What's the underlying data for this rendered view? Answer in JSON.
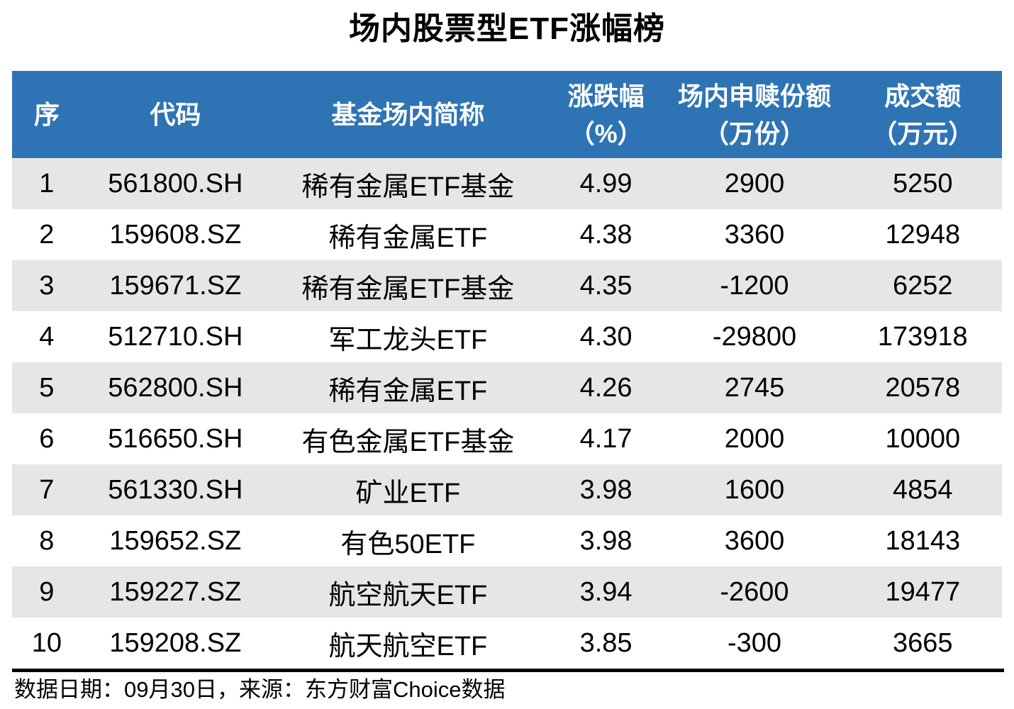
{
  "colors": {
    "header_bg": "#2E74B5",
    "header_text": "#FFFFFF",
    "row_stripe_bg": "#E7E6E6",
    "row_plain_bg": "#FFFFFF",
    "body_text": "#000000",
    "divider": "#000000"
  },
  "chart_data": {
    "type": "table",
    "title": "场内股票型ETF涨幅榜",
    "columns": [
      {
        "key": "no",
        "label": "序",
        "unit": ""
      },
      {
        "key": "code",
        "label": "代码",
        "unit": ""
      },
      {
        "key": "name",
        "label": "基金场内简称",
        "unit": ""
      },
      {
        "key": "change_pct",
        "label": "涨跌幅",
        "unit": "（%）"
      },
      {
        "key": "shares_10k",
        "label": "场内申赎份额",
        "unit": "（万份）"
      },
      {
        "key": "turnover_10k",
        "label": "成交额",
        "unit": "（万元）"
      }
    ],
    "rows": [
      {
        "no": "1",
        "code": "561800.SH",
        "name": "稀有金属ETF基金",
        "change_pct": "4.99",
        "shares_10k": "2900",
        "turnover_10k": "5250"
      },
      {
        "no": "2",
        "code": "159608.SZ",
        "name": "稀有金属ETF",
        "change_pct": "4.38",
        "shares_10k": "3360",
        "turnover_10k": "12948"
      },
      {
        "no": "3",
        "code": "159671.SZ",
        "name": "稀有金属ETF基金",
        "change_pct": "4.35",
        "shares_10k": "-1200",
        "turnover_10k": "6252"
      },
      {
        "no": "4",
        "code": "512710.SH",
        "name": "军工龙头ETF",
        "change_pct": "4.30",
        "shares_10k": "-29800",
        "turnover_10k": "173918"
      },
      {
        "no": "5",
        "code": "562800.SH",
        "name": "稀有金属ETF",
        "change_pct": "4.26",
        "shares_10k": "2745",
        "turnover_10k": "20578"
      },
      {
        "no": "6",
        "code": "516650.SH",
        "name": "有色金属ETF基金",
        "change_pct": "4.17",
        "shares_10k": "2000",
        "turnover_10k": "10000"
      },
      {
        "no": "7",
        "code": "561330.SH",
        "name": "矿业ETF",
        "change_pct": "3.98",
        "shares_10k": "1600",
        "turnover_10k": "4854"
      },
      {
        "no": "8",
        "code": "159652.SZ",
        "name": "有色50ETF",
        "change_pct": "3.98",
        "shares_10k": "3600",
        "turnover_10k": "18143"
      },
      {
        "no": "9",
        "code": "159227.SZ",
        "name": "航空航天ETF",
        "change_pct": "3.94",
        "shares_10k": "-2600",
        "turnover_10k": "19477"
      },
      {
        "no": "10",
        "code": "159208.SZ",
        "name": "航天航空ETF",
        "change_pct": "3.85",
        "shares_10k": "-300",
        "turnover_10k": "3665"
      }
    ],
    "source": "数据日期：09月30日，来源：东方财富Choice数据"
  }
}
